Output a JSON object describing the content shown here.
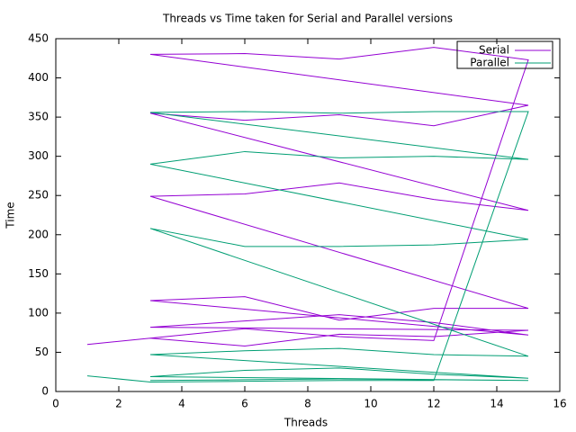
{
  "chart_data": {
    "type": "line",
    "title": "Threads vs Time taken for Serial and Parallel versions",
    "x_label": "Threads",
    "y_label": "Time",
    "xlim": [
      0,
      16
    ],
    "xticks": [
      0,
      2,
      4,
      6,
      8,
      10,
      12,
      14,
      16
    ],
    "ylim": [
      0,
      450
    ],
    "yticks": [
      0,
      50,
      100,
      150,
      200,
      250,
      300,
      350,
      400,
      450
    ],
    "legend": "top-right",
    "series": [
      {
        "name": "Serial",
        "color": "#9400d3",
        "x": [
          1,
          3,
          6,
          9,
          12,
          15,
          12,
          9,
          6,
          3,
          15,
          12,
          9,
          6,
          3,
          15,
          12,
          9,
          6,
          3,
          15,
          12,
          9,
          6,
          3,
          15,
          12,
          9,
          6,
          3,
          15,
          12,
          9,
          6,
          3
        ],
        "values": [
          60,
          68,
          80,
          70,
          65,
          423,
          439,
          424,
          431,
          430,
          365,
          339,
          353,
          346,
          355,
          231,
          245,
          266,
          252,
          249,
          106,
          106,
          91,
          121,
          116,
          72,
          88,
          98,
          90,
          82,
          78,
          70,
          73,
          58,
          68
        ]
      },
      {
        "name": "Parallel",
        "color": "#009e73",
        "x": [
          1,
          3,
          6,
          9,
          12,
          15,
          12,
          9,
          6,
          3,
          15,
          12,
          9,
          6,
          3,
          15,
          12,
          9,
          6,
          3,
          15,
          12,
          9,
          6,
          3,
          15,
          12,
          9,
          6,
          3,
          15,
          12,
          9,
          6,
          3
        ],
        "values": [
          20,
          12,
          13,
          14,
          14,
          357,
          357,
          355,
          357,
          356,
          296,
          300,
          298,
          306,
          290,
          194,
          187,
          185,
          185,
          208,
          45,
          47,
          55,
          52,
          47,
          17,
          22,
          30,
          27,
          19,
          14,
          15,
          16,
          15,
          14
        ]
      }
    ]
  }
}
